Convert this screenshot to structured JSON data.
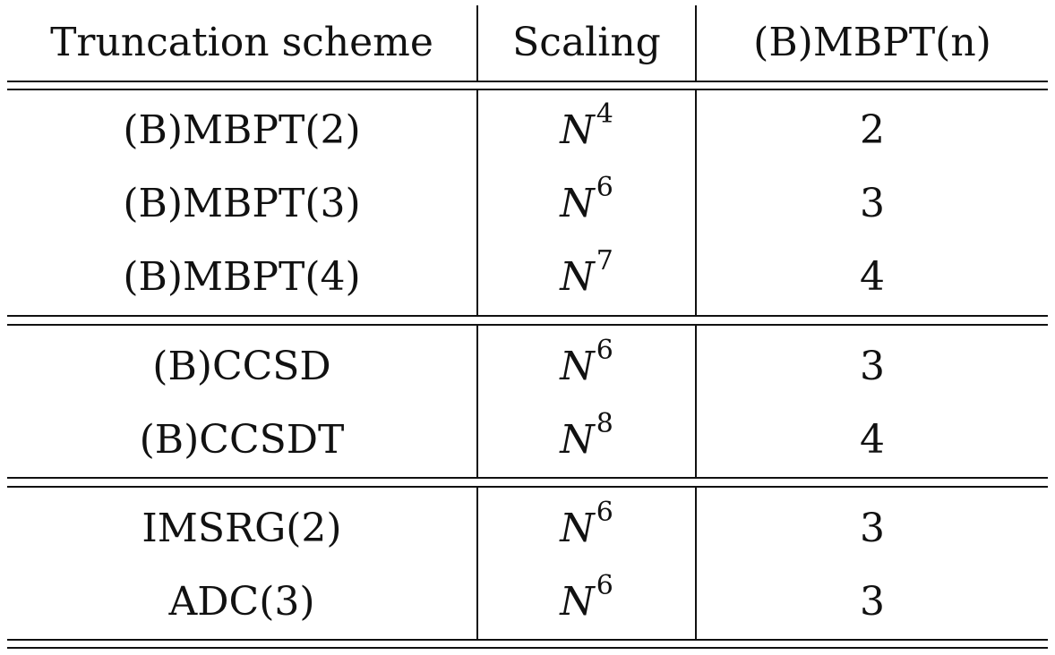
{
  "table": {
    "headers": [
      "Truncation scheme",
      "Scaling",
      "(B)MBPT(n)"
    ],
    "groups": [
      {
        "rows": [
          {
            "scheme": "(B)MBPT(2)",
            "scaling_base": "N",
            "scaling_exp": "4",
            "mbpt_n": "2"
          },
          {
            "scheme": "(B)MBPT(3)",
            "scaling_base": "N",
            "scaling_exp": "6",
            "mbpt_n": "3"
          },
          {
            "scheme": "(B)MBPT(4)",
            "scaling_base": "N",
            "scaling_exp": "7",
            "mbpt_n": "4"
          }
        ]
      },
      {
        "rows": [
          {
            "scheme": "(B)CCSD",
            "scaling_base": "N",
            "scaling_exp": "6",
            "mbpt_n": "3"
          },
          {
            "scheme": "(B)CCSDT",
            "scaling_base": "N",
            "scaling_exp": "8",
            "mbpt_n": "4"
          }
        ]
      },
      {
        "rows": [
          {
            "scheme": "IMSRG(2)",
            "scaling_base": "N",
            "scaling_exp": "6",
            "mbpt_n": "3"
          },
          {
            "scheme": "ADC(3)",
            "scaling_base": "N",
            "scaling_exp": "6",
            "mbpt_n": "3"
          }
        ]
      }
    ]
  }
}
